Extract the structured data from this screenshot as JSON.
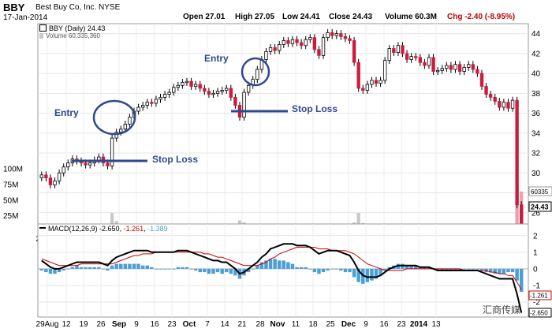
{
  "header": {
    "symbol": "BBY",
    "company": "Best Buy Co, Inc.  NYSE",
    "date": "17-Jan-2014",
    "open_label": "Open 27.01",
    "high_label": "High 27.05",
    "low_label": "Low 24.41",
    "close_label": "Close 24.43",
    "volume_label": "Volume 60.3M",
    "chg_label": "Chg -2.40 (-8.95%)"
  },
  "legend": {
    "price": "BBY (Daily) 24.43",
    "volume": "Volume 60,335,360",
    "macd_name": "MACD(12,26,9)",
    "macd_v1": "-2.650",
    "macd_v2": "-1.261",
    "macd_v3": "-1.389"
  },
  "annotations": {
    "entry1": "Entry",
    "entry2": "Entry",
    "stop1": "Stop Loss",
    "stop2": "Stop Loss"
  },
  "watermark": "汇商传媒",
  "colors": {
    "up": "#ffffff",
    "down": "#cc1b3e",
    "outline": "#000000",
    "macd": "#000000",
    "signal": "#cc0000",
    "hist": "#4a9fd8",
    "annotation": "#2e4a8f",
    "volume": "#c8c8c8"
  },
  "chart_data": [
    {
      "type": "candlestick",
      "title": "BBY (Daily) 24.43",
      "x_ticks": [
        "29Aug",
        "12",
        "19",
        "26",
        "Sep",
        "9",
        "16",
        "23",
        "Oct",
        "7",
        "14",
        "21",
        "28",
        "Nov",
        "11",
        "18",
        "25",
        "Dec",
        "9",
        "16",
        "23",
        "2014",
        "13"
      ],
      "y_ticks": [
        26,
        28,
        30,
        32,
        34,
        36,
        38,
        40,
        42,
        44
      ],
      "ylim": [
        24,
        45
      ],
      "last_price_label": "24.43",
      "close": [
        29.8,
        29.5,
        28.8,
        29.2,
        30.0,
        30.6,
        31.0,
        31.4,
        31.2,
        31.0,
        30.8,
        31.0,
        31.3,
        31.6,
        31.0,
        30.7,
        33.5,
        34.1,
        34.4,
        34.9,
        35.6,
        36.2,
        36.6,
        36.8,
        37.1,
        37.0,
        37.4,
        37.6,
        37.9,
        38.1,
        38.6,
        38.8,
        39.1,
        39.2,
        38.7,
        38.9,
        38.5,
        38.2,
        37.9,
        38.0,
        38.2,
        38.3,
        38.5,
        37.6,
        36.8,
        35.6,
        38.1,
        38.8,
        39.4,
        40.4,
        41.4,
        42.2,
        42.6,
        42.3,
        42.9,
        43.3,
        43.0,
        43.4,
        43.1,
        42.8,
        43.4,
        43.6,
        42.4,
        41.8,
        43.6,
        44.1,
        43.8,
        44.0,
        43.7,
        43.5,
        43.3,
        41.1,
        38.5,
        38.3,
        38.9,
        39.3,
        39.0,
        39.3,
        41.3,
        42.5,
        42.1,
        42.8,
        42.0,
        41.4,
        41.7,
        41.6,
        41.1,
        40.8,
        41.6,
        40.2,
        40.3,
        40.5,
        40.8,
        40.4,
        40.9,
        40.2,
        40.6,
        40.9,
        40.4,
        40.0,
        38.7,
        37.9,
        37.6,
        37.2,
        36.6,
        37.1,
        36.5,
        37.3,
        26.8,
        24.4
      ],
      "volume_ticks": [
        "25M",
        "50M",
        "75M",
        "100M"
      ],
      "volume_ylim": [
        0,
        110
      ],
      "volume_last_label": "60335",
      "volume": [
        9,
        8,
        10,
        9,
        8,
        9,
        9,
        8,
        9,
        10,
        12,
        8,
        9,
        10,
        9,
        10,
        28,
        16,
        10,
        9,
        8,
        9,
        8,
        9,
        8,
        9,
        8,
        8,
        9,
        7,
        8,
        9,
        8,
        8,
        7,
        8,
        7,
        8,
        8,
        9,
        7,
        8,
        7,
        8,
        12,
        17,
        14,
        10,
        9,
        11,
        9,
        8,
        9,
        8,
        7,
        8,
        7,
        8,
        7,
        9,
        8,
        7,
        8,
        9,
        7,
        8,
        7,
        7,
        8,
        7,
        9,
        14,
        28,
        13,
        10,
        9,
        8,
        9,
        10,
        8,
        7,
        8,
        9,
        8,
        7,
        8,
        7,
        7,
        8,
        9,
        7,
        7,
        8,
        7,
        8,
        9,
        8,
        7,
        8,
        9,
        10,
        9,
        8,
        9,
        10,
        9,
        10,
        12,
        72,
        60
      ]
    },
    {
      "type": "line",
      "title": "MACD(12,26,9) -2.650, -1.261, -1.389",
      "y_ticks": [
        -2,
        -1,
        0,
        1,
        2
      ],
      "ylim": [
        -2.9,
        2.7
      ],
      "last_value_labels": [
        "-1.261",
        "-2.650"
      ],
      "series": [
        {
          "name": "MACD",
          "values": [
            0.5,
            0.3,
            0.1,
            0.0,
            0.0,
            0.1,
            0.2,
            0.3,
            0.4,
            0.4,
            0.4,
            0.4,
            0.4,
            0.4,
            0.3,
            0.2,
            0.5,
            0.7,
            0.8,
            0.9,
            1.0,
            1.1,
            1.1,
            1.1,
            1.1,
            1.0,
            1.0,
            1.0,
            1.0,
            1.0,
            1.0,
            1.1,
            1.1,
            1.1,
            1.0,
            0.9,
            0.8,
            0.7,
            0.6,
            0.5,
            0.5,
            0.4,
            0.4,
            0.2,
            0.0,
            -0.3,
            -0.2,
            0.0,
            0.2,
            0.4,
            0.7,
            0.9,
            1.2,
            1.3,
            1.4,
            1.5,
            1.5,
            1.5,
            1.4,
            1.4,
            1.4,
            1.3,
            1.1,
            0.9,
            1.0,
            1.1,
            1.1,
            1.1,
            1.0,
            0.9,
            0.8,
            0.4,
            -0.1,
            -0.4,
            -0.5,
            -0.5,
            -0.5,
            -0.4,
            -0.2,
            0.0,
            0.1,
            0.2,
            0.2,
            0.2,
            0.2,
            0.2,
            0.1,
            0.1,
            0.1,
            0.0,
            -0.1,
            -0.1,
            -0.1,
            -0.1,
            -0.1,
            -0.1,
            -0.1,
            -0.1,
            -0.1,
            -0.1,
            -0.2,
            -0.3,
            -0.4,
            -0.5,
            -0.6,
            -0.6,
            -0.6,
            -0.6,
            -1.5,
            -2.65
          ]
        },
        {
          "name": "Signal",
          "values": [
            0.6,
            0.5,
            0.4,
            0.3,
            0.2,
            0.2,
            0.2,
            0.2,
            0.2,
            0.3,
            0.3,
            0.3,
            0.3,
            0.3,
            0.3,
            0.3,
            0.3,
            0.4,
            0.5,
            0.6,
            0.7,
            0.8,
            0.8,
            0.9,
            0.9,
            0.9,
            1.0,
            1.0,
            1.0,
            1.0,
            1.0,
            1.0,
            1.0,
            1.0,
            1.0,
            1.0,
            1.0,
            0.9,
            0.9,
            0.8,
            0.7,
            0.7,
            0.6,
            0.5,
            0.4,
            0.3,
            0.2,
            0.2,
            0.2,
            0.2,
            0.3,
            0.4,
            0.6,
            0.7,
            0.9,
            1.0,
            1.1,
            1.2,
            1.3,
            1.3,
            1.3,
            1.3,
            1.3,
            1.2,
            1.2,
            1.2,
            1.1,
            1.1,
            1.1,
            1.1,
            1.0,
            0.9,
            0.7,
            0.5,
            0.3,
            0.2,
            0.1,
            0.0,
            -0.1,
            -0.1,
            -0.1,
            -0.1,
            -0.1,
            0.0,
            0.0,
            0.0,
            0.0,
            0.0,
            0.0,
            0.0,
            0.0,
            0.0,
            0.0,
            0.0,
            0.0,
            0.0,
            -0.1,
            -0.1,
            -0.1,
            -0.1,
            -0.1,
            -0.1,
            -0.2,
            -0.2,
            -0.3,
            -0.3,
            -0.4,
            -0.4,
            -0.8,
            -1.26
          ]
        },
        {
          "name": "Histogram",
          "values": [
            -0.1,
            -0.2,
            -0.3,
            -0.3,
            -0.2,
            -0.1,
            0.0,
            0.1,
            0.2,
            0.1,
            0.1,
            0.1,
            0.1,
            0.1,
            0.0,
            -0.1,
            0.2,
            0.3,
            0.3,
            0.3,
            0.3,
            0.3,
            0.3,
            0.2,
            0.2,
            0.1,
            0.0,
            0.0,
            0.0,
            0.0,
            0.0,
            0.1,
            0.1,
            0.1,
            0.0,
            -0.1,
            -0.2,
            -0.2,
            -0.3,
            -0.3,
            -0.2,
            -0.3,
            -0.2,
            -0.3,
            -0.4,
            -0.6,
            -0.4,
            -0.2,
            0.0,
            0.2,
            0.4,
            0.5,
            0.6,
            0.6,
            0.5,
            0.5,
            0.4,
            0.3,
            0.1,
            0.1,
            0.1,
            0.0,
            -0.2,
            -0.3,
            -0.2,
            -0.1,
            0.0,
            0.0,
            -0.1,
            -0.2,
            -0.2,
            -0.5,
            -0.8,
            -0.9,
            -0.8,
            -0.7,
            -0.6,
            -0.4,
            -0.1,
            0.1,
            0.2,
            0.3,
            0.3,
            0.2,
            0.2,
            0.2,
            0.1,
            0.1,
            0.1,
            0.0,
            -0.1,
            -0.1,
            -0.1,
            -0.1,
            -0.1,
            -0.1,
            0.0,
            0.0,
            0.0,
            0.0,
            -0.1,
            -0.2,
            -0.2,
            -0.3,
            -0.3,
            -0.3,
            -0.2,
            -0.2,
            -0.7,
            -1.39
          ]
        }
      ]
    }
  ]
}
